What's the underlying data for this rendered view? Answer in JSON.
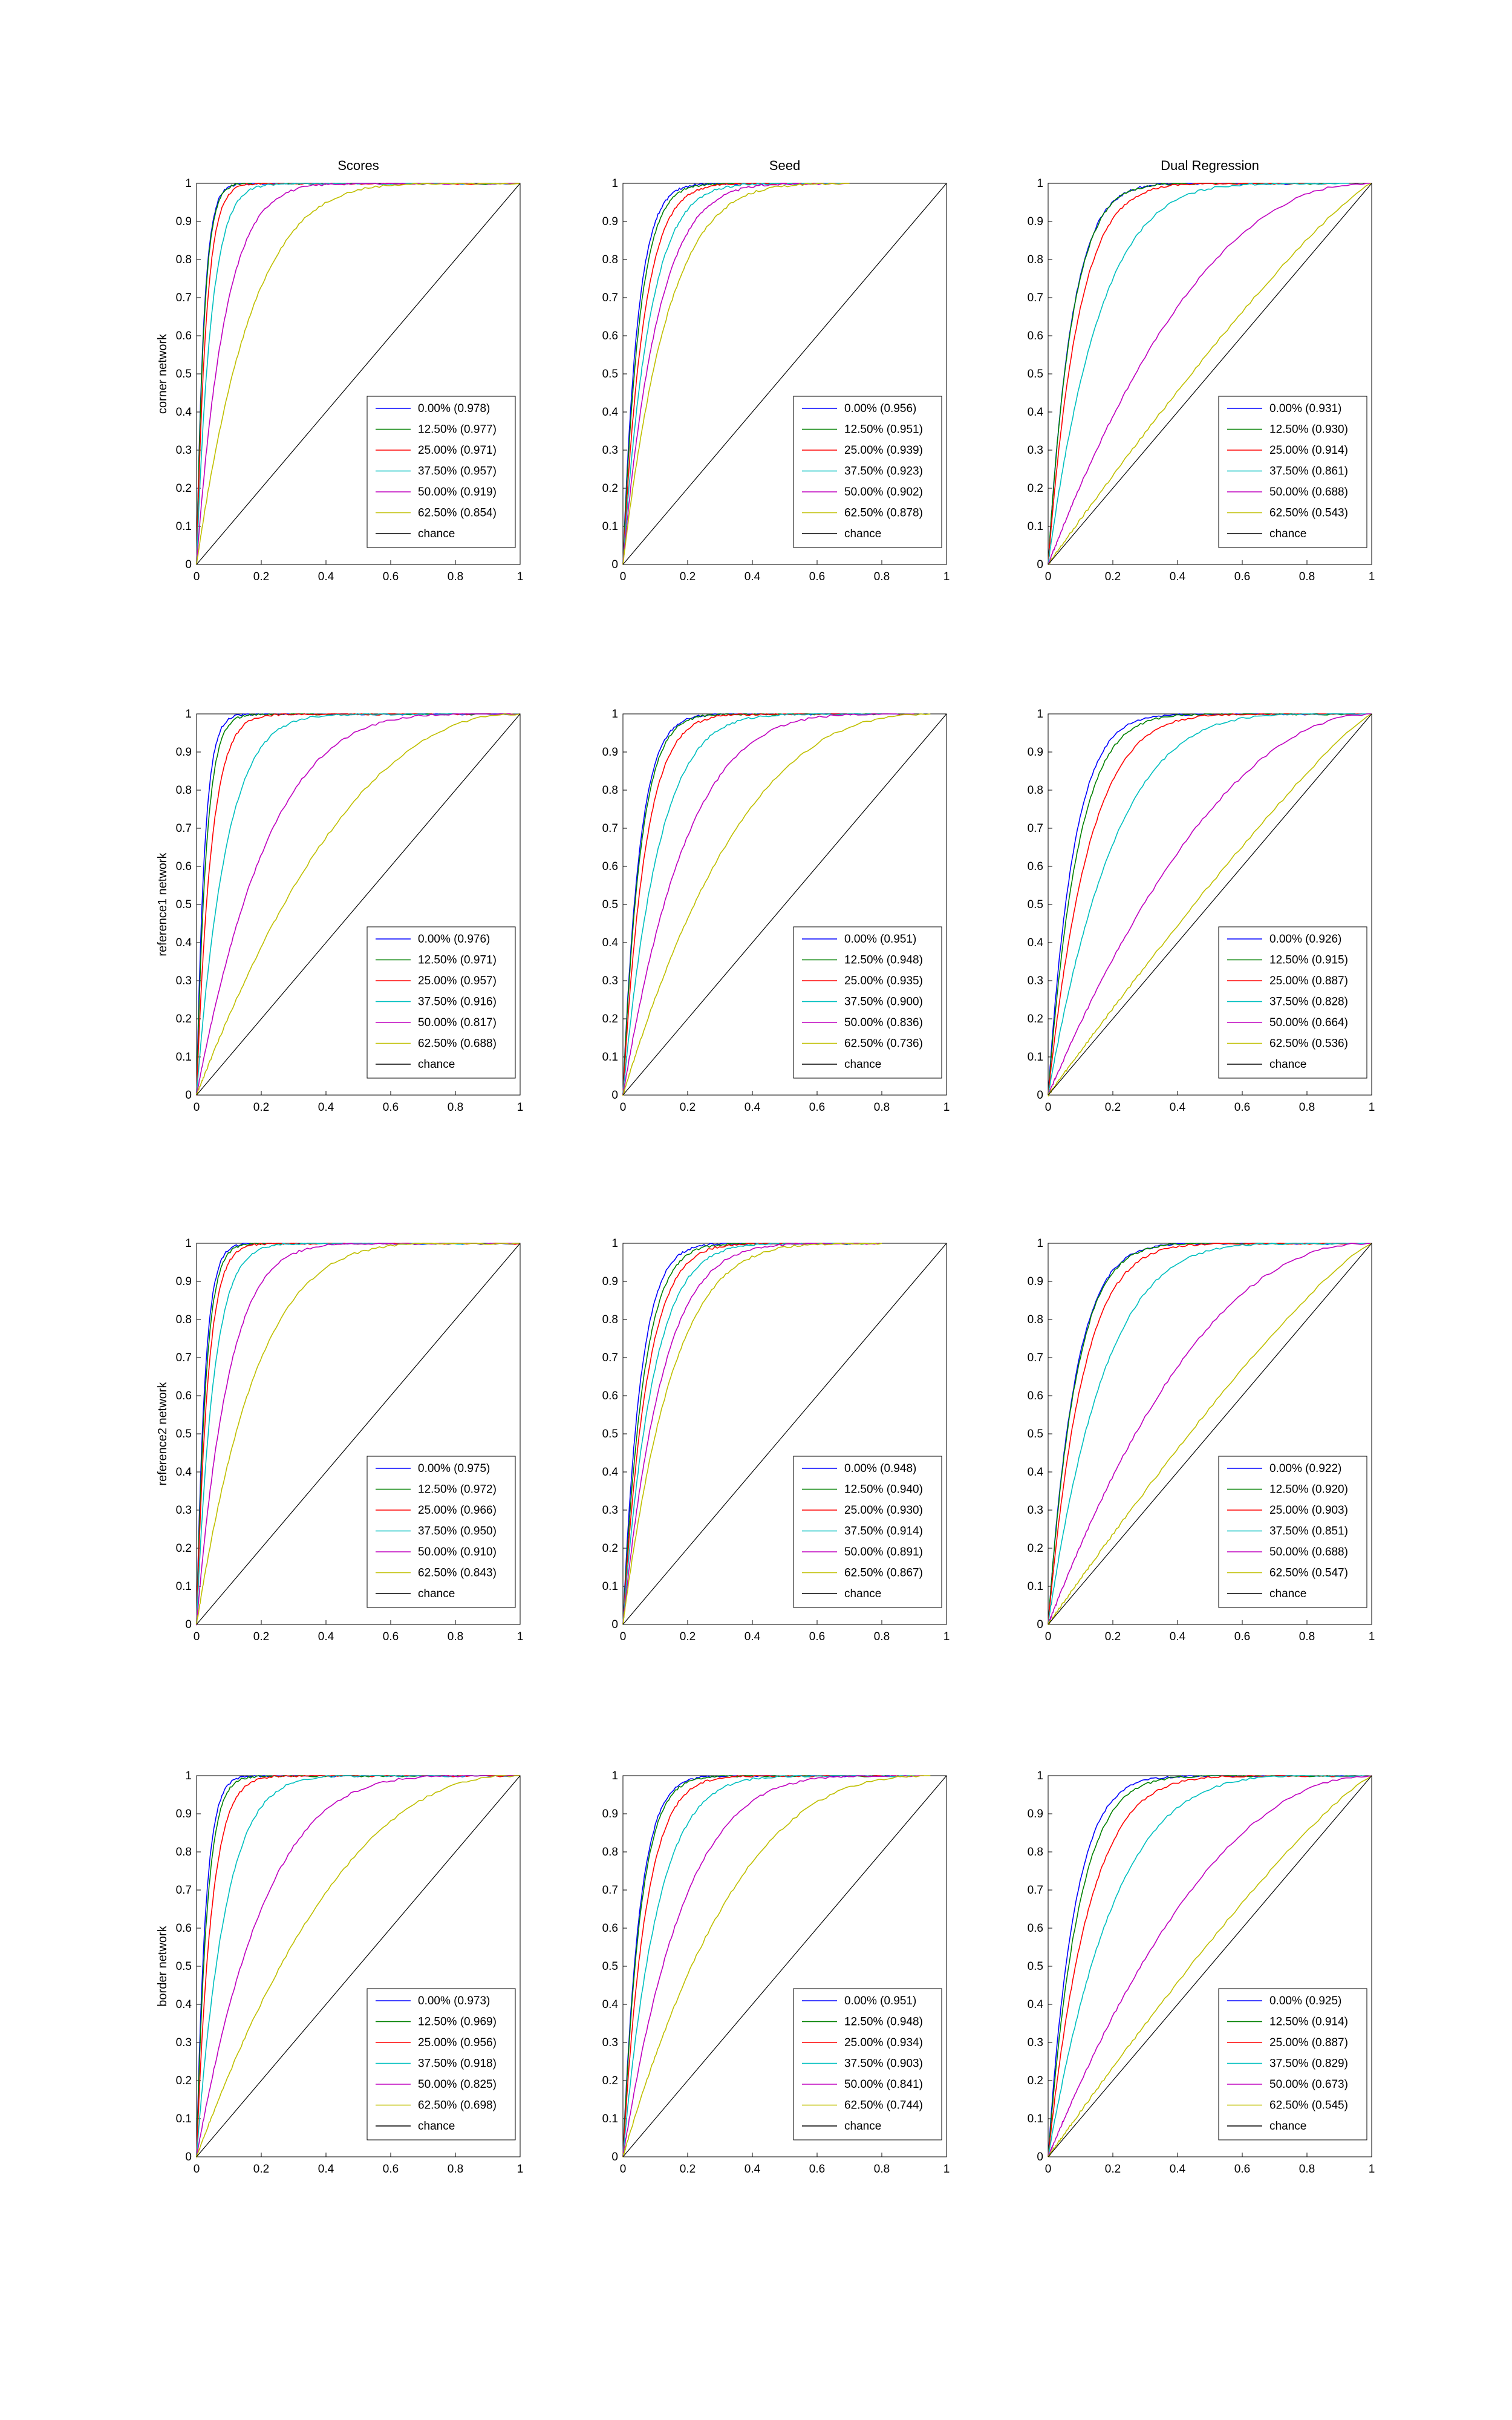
{
  "figure": {
    "column_titles": [
      "Scores",
      "Seed",
      "Dual Regression"
    ],
    "row_labels": [
      "corner network",
      "reference1 network",
      "reference2 network",
      "border network"
    ],
    "legend_levels": [
      "0.00%",
      "12.50%",
      "25.00%",
      "37.50%",
      "50.00%",
      "62.50%"
    ],
    "chance_label": "chance",
    "series_colors": [
      "#0000ff",
      "#008000",
      "#ff0000",
      "#00bfbf",
      "#bf00bf",
      "#bfbf00"
    ],
    "chance_color": "#000000",
    "axis_tick_labels": [
      "0",
      "0.1",
      "0.2",
      "0.3",
      "0.4",
      "0.5",
      "0.6",
      "0.7",
      "0.8",
      "0.9",
      "1"
    ],
    "x_tick_labels": [
      "0",
      "0.2",
      "0.4",
      "0.6",
      "0.8",
      "1"
    ]
  },
  "chart_data": [
    {
      "type": "line",
      "row": "corner network",
      "column": "Scores",
      "xlim": [
        0,
        1
      ],
      "ylim": [
        0,
        1
      ],
      "legend_placement": "bottom-right",
      "series": [
        {
          "name": "0.00% (0.978)",
          "auc": 0.978,
          "x_end": 1
        },
        {
          "name": "12.50% (0.977)",
          "auc": 0.977,
          "x_end": 1
        },
        {
          "name": "25.00% (0.971)",
          "auc": 0.971,
          "x_end": 1
        },
        {
          "name": "37.50% (0.957)",
          "auc": 0.957,
          "x_end": 1
        },
        {
          "name": "50.00% (0.919)",
          "auc": 0.919,
          "x_end": 1
        },
        {
          "name": "62.50% (0.854)",
          "auc": 0.854,
          "x_end": 1
        },
        {
          "name": "chance",
          "x": [
            0,
            1
          ],
          "y": [
            0,
            1
          ]
        }
      ]
    },
    {
      "type": "line",
      "row": "corner network",
      "column": "Seed",
      "xlim": [
        0,
        1
      ],
      "ylim": [
        0,
        1
      ],
      "legend_placement": "bottom-right",
      "series": [
        {
          "name": "0.00% (0.956)",
          "auc": 0.956,
          "x_end": 0.65
        },
        {
          "name": "12.50% (0.951)",
          "auc": 0.951,
          "x_end": 0.65
        },
        {
          "name": "25.00% (0.939)",
          "auc": 0.939,
          "x_end": 0.67
        },
        {
          "name": "37.50% (0.923)",
          "auc": 0.923,
          "x_end": 0.68
        },
        {
          "name": "50.00% (0.902)",
          "auc": 0.902,
          "x_end": 0.7
        },
        {
          "name": "62.50% (0.878)",
          "auc": 0.878,
          "x_end": 0.7
        },
        {
          "name": "chance",
          "x": [
            0,
            1
          ],
          "y": [
            0,
            1
          ]
        }
      ]
    },
    {
      "type": "line",
      "row": "corner network",
      "column": "Dual Regression",
      "xlim": [
        0,
        1
      ],
      "ylim": [
        0,
        1
      ],
      "legend_placement": "bottom-right",
      "series": [
        {
          "name": "0.00% (0.931)",
          "auc": 0.931,
          "x_end": 0.85
        },
        {
          "name": "12.50% (0.930)",
          "auc": 0.93,
          "x_end": 0.85
        },
        {
          "name": "25.00% (0.914)",
          "auc": 0.914,
          "x_end": 0.88
        },
        {
          "name": "37.50% (0.861)",
          "auc": 0.861,
          "x_end": 0.93
        },
        {
          "name": "50.00% (0.688)",
          "auc": 0.688,
          "x_end": 1
        },
        {
          "name": "62.50% (0.543)",
          "auc": 0.543,
          "x_end": 1
        },
        {
          "name": "chance",
          "x": [
            0,
            1
          ],
          "y": [
            0,
            1
          ]
        }
      ]
    },
    {
      "type": "line",
      "row": "reference1 network",
      "column": "Scores",
      "xlim": [
        0,
        1
      ],
      "ylim": [
        0,
        1
      ],
      "legend_placement": "bottom-right",
      "series": [
        {
          "name": "0.00% (0.976)",
          "auc": 0.976,
          "x_end": 1
        },
        {
          "name": "12.50% (0.971)",
          "auc": 0.971,
          "x_end": 1
        },
        {
          "name": "25.00% (0.957)",
          "auc": 0.957,
          "x_end": 1
        },
        {
          "name": "37.50% (0.916)",
          "auc": 0.916,
          "x_end": 1
        },
        {
          "name": "50.00% (0.817)",
          "auc": 0.817,
          "x_end": 1
        },
        {
          "name": "62.50% (0.688)",
          "auc": 0.688,
          "x_end": 1
        },
        {
          "name": "chance",
          "x": [
            0,
            1
          ],
          "y": [
            0,
            1
          ]
        }
      ]
    },
    {
      "type": "line",
      "row": "reference1 network",
      "column": "Seed",
      "xlim": [
        0,
        1
      ],
      "ylim": [
        0,
        1
      ],
      "legend_placement": "bottom-right",
      "series": [
        {
          "name": "0.00% (0.951)",
          "auc": 0.951,
          "x_end": 0.8
        },
        {
          "name": "12.50% (0.948)",
          "auc": 0.948,
          "x_end": 0.8
        },
        {
          "name": "25.00% (0.935)",
          "auc": 0.935,
          "x_end": 0.82
        },
        {
          "name": "37.50% (0.900)",
          "auc": 0.9,
          "x_end": 0.85
        },
        {
          "name": "50.00% (0.836)",
          "auc": 0.836,
          "x_end": 0.9
        },
        {
          "name": "62.50% (0.736)",
          "auc": 0.736,
          "x_end": 0.95
        },
        {
          "name": "chance",
          "x": [
            0,
            1
          ],
          "y": [
            0,
            1
          ]
        }
      ]
    },
    {
      "type": "line",
      "row": "reference1 network",
      "column": "Dual Regression",
      "xlim": [
        0,
        1
      ],
      "ylim": [
        0,
        1
      ],
      "legend_placement": "bottom-right",
      "series": [
        {
          "name": "0.00% (0.926)",
          "auc": 0.926,
          "x_end": 0.95
        },
        {
          "name": "12.50% (0.915)",
          "auc": 0.915,
          "x_end": 0.95
        },
        {
          "name": "25.00% (0.887)",
          "auc": 0.887,
          "x_end": 0.97
        },
        {
          "name": "37.50% (0.828)",
          "auc": 0.828,
          "x_end": 1
        },
        {
          "name": "50.00% (0.664)",
          "auc": 0.664,
          "x_end": 1
        },
        {
          "name": "62.50% (0.536)",
          "auc": 0.536,
          "x_end": 1
        },
        {
          "name": "chance",
          "x": [
            0,
            1
          ],
          "y": [
            0,
            1
          ]
        }
      ]
    },
    {
      "type": "line",
      "row": "reference2 network",
      "column": "Scores",
      "xlim": [
        0,
        1
      ],
      "ylim": [
        0,
        1
      ],
      "legend_placement": "bottom-right",
      "series": [
        {
          "name": "0.00% (0.975)",
          "auc": 0.975,
          "x_end": 1
        },
        {
          "name": "12.50% (0.972)",
          "auc": 0.972,
          "x_end": 1
        },
        {
          "name": "25.00% (0.966)",
          "auc": 0.966,
          "x_end": 1
        },
        {
          "name": "37.50% (0.950)",
          "auc": 0.95,
          "x_end": 1
        },
        {
          "name": "50.00% (0.910)",
          "auc": 0.91,
          "x_end": 1
        },
        {
          "name": "62.50% (0.843)",
          "auc": 0.843,
          "x_end": 1
        },
        {
          "name": "chance",
          "x": [
            0,
            1
          ],
          "y": [
            0,
            1
          ]
        }
      ]
    },
    {
      "type": "line",
      "row": "reference2 network",
      "column": "Seed",
      "xlim": [
        0,
        1
      ],
      "ylim": [
        0,
        1
      ],
      "legend_placement": "bottom-right",
      "series": [
        {
          "name": "0.00% (0.948)",
          "auc": 0.948,
          "x_end": 0.75
        },
        {
          "name": "12.50% (0.940)",
          "auc": 0.94,
          "x_end": 0.76
        },
        {
          "name": "25.00% (0.930)",
          "auc": 0.93,
          "x_end": 0.77
        },
        {
          "name": "37.50% (0.914)",
          "auc": 0.914,
          "x_end": 0.78
        },
        {
          "name": "50.00% (0.891)",
          "auc": 0.891,
          "x_end": 0.79
        },
        {
          "name": "62.50% (0.867)",
          "auc": 0.867,
          "x_end": 0.8
        },
        {
          "name": "chance",
          "x": [
            0,
            1
          ],
          "y": [
            0,
            1
          ]
        }
      ]
    },
    {
      "type": "line",
      "row": "reference2 network",
      "column": "Dual Regression",
      "xlim": [
        0,
        1
      ],
      "ylim": [
        0,
        1
      ],
      "legend_placement": "bottom-right",
      "series": [
        {
          "name": "0.00% (0.922)",
          "auc": 0.922,
          "x_end": 0.92
        },
        {
          "name": "12.50% (0.920)",
          "auc": 0.92,
          "x_end": 0.92
        },
        {
          "name": "25.00% (0.903)",
          "auc": 0.903,
          "x_end": 0.95
        },
        {
          "name": "37.50% (0.851)",
          "auc": 0.851,
          "x_end": 1
        },
        {
          "name": "50.00% (0.688)",
          "auc": 0.688,
          "x_end": 1
        },
        {
          "name": "62.50% (0.547)",
          "auc": 0.547,
          "x_end": 1
        },
        {
          "name": "chance",
          "x": [
            0,
            1
          ],
          "y": [
            0,
            1
          ]
        }
      ]
    },
    {
      "type": "line",
      "row": "border network",
      "column": "Scores",
      "xlim": [
        0,
        1
      ],
      "ylim": [
        0,
        1
      ],
      "legend_placement": "bottom-right",
      "series": [
        {
          "name": "0.00% (0.973)",
          "auc": 0.973,
          "x_end": 1
        },
        {
          "name": "12.50% (0.969)",
          "auc": 0.969,
          "x_end": 1
        },
        {
          "name": "25.00% (0.956)",
          "auc": 0.956,
          "x_end": 1
        },
        {
          "name": "37.50% (0.918)",
          "auc": 0.918,
          "x_end": 1
        },
        {
          "name": "50.00% (0.825)",
          "auc": 0.825,
          "x_end": 1
        },
        {
          "name": "62.50% (0.698)",
          "auc": 0.698,
          "x_end": 1
        },
        {
          "name": "chance",
          "x": [
            0,
            1
          ],
          "y": [
            0,
            1
          ]
        }
      ]
    },
    {
      "type": "line",
      "row": "border network",
      "column": "Seed",
      "xlim": [
        0,
        1
      ],
      "ylim": [
        0,
        1
      ],
      "legend_placement": "bottom-right",
      "series": [
        {
          "name": "0.00% (0.951)",
          "auc": 0.951,
          "x_end": 0.85
        },
        {
          "name": "12.50% (0.948)",
          "auc": 0.948,
          "x_end": 0.85
        },
        {
          "name": "25.00% (0.934)",
          "auc": 0.934,
          "x_end": 0.87
        },
        {
          "name": "37.50% (0.903)",
          "auc": 0.903,
          "x_end": 0.9
        },
        {
          "name": "50.00% (0.841)",
          "auc": 0.841,
          "x_end": 0.93
        },
        {
          "name": "62.50% (0.744)",
          "auc": 0.744,
          "x_end": 0.95
        },
        {
          "name": "chance",
          "x": [
            0,
            1
          ],
          "y": [
            0,
            1
          ]
        }
      ]
    },
    {
      "type": "line",
      "row": "border network",
      "column": "Dual Regression",
      "xlim": [
        0,
        1
      ],
      "ylim": [
        0,
        1
      ],
      "legend_placement": "bottom-right",
      "series": [
        {
          "name": "0.00% (0.925)",
          "auc": 0.925,
          "x_end": 0.95
        },
        {
          "name": "12.50% (0.914)",
          "auc": 0.914,
          "x_end": 0.95
        },
        {
          "name": "25.00% (0.887)",
          "auc": 0.887,
          "x_end": 0.97
        },
        {
          "name": "37.50% (0.829)",
          "auc": 0.829,
          "x_end": 1
        },
        {
          "name": "50.00% (0.673)",
          "auc": 0.673,
          "x_end": 1
        },
        {
          "name": "62.50% (0.545)",
          "auc": 0.545,
          "x_end": 1
        },
        {
          "name": "chance",
          "x": [
            0,
            1
          ],
          "y": [
            0,
            1
          ]
        }
      ]
    }
  ]
}
